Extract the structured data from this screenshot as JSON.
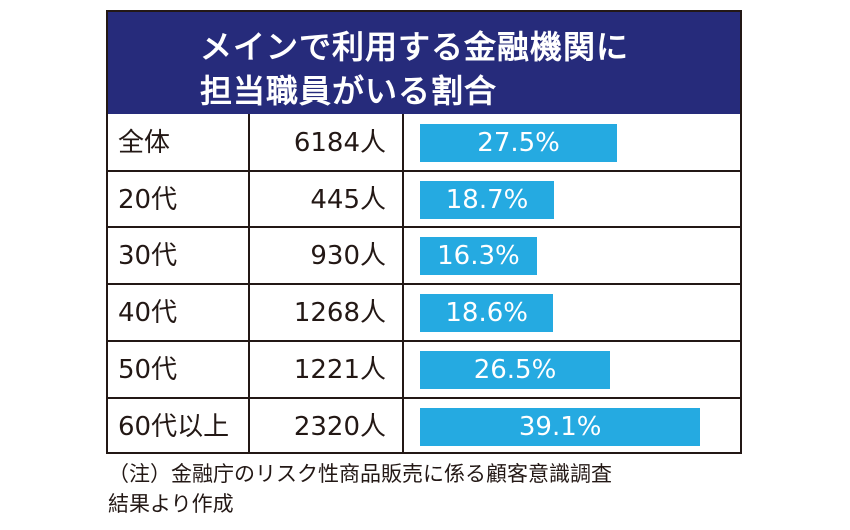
{
  "colors": {
    "title_bg": "#262b7b",
    "bar": "#25aae1",
    "border": "#231815"
  },
  "chart_data": {
    "type": "bar",
    "orientation": "horizontal",
    "title_lines": [
      "メインで利用する金融機関に",
      "担当職員がいる割合"
    ],
    "rows": [
      {
        "group": "全体",
        "count": "6184人",
        "value": 27.5,
        "label": "27.5%"
      },
      {
        "group": "20代",
        "count": "445人",
        "value": 18.7,
        "label": "18.7%"
      },
      {
        "group": "30代",
        "count": "930人",
        "value": 16.3,
        "label": "16.3%"
      },
      {
        "group": "40代",
        "count": "1268人",
        "value": 18.6,
        "label": "18.6%"
      },
      {
        "group": "50代",
        "count": "1221人",
        "value": 26.5,
        "label": "26.5%"
      },
      {
        "group": "60代以上",
        "count": "2320人",
        "value": 39.1,
        "label": "39.1%"
      }
    ],
    "unit": "%"
  },
  "note_lines": [
    "（注）金融庁のリスク性商品販売に係る顧客意識調査",
    "結果より作成"
  ]
}
